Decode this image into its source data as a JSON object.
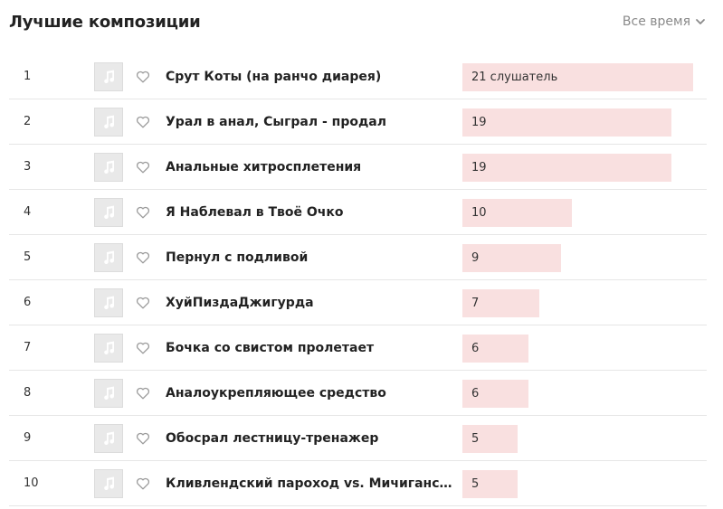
{
  "header": {
    "title": "Лучшие композиции",
    "period_label": "Все время"
  },
  "colors": {
    "bar_fill": "#f9e0e0",
    "divider": "#e6e6e6",
    "muted_text": "#8a8a8a"
  },
  "icons": {
    "cover": "music-note-icon",
    "like": "heart-outline-icon",
    "period": "chevron-down-icon"
  },
  "tracks": [
    {
      "rank": "1",
      "name": "Срут Коты (на ранчо диарея)",
      "listeners": 21,
      "listeners_label": "21 слушатель"
    },
    {
      "rank": "2",
      "name": "Урал в анал, Сыграл - продал",
      "listeners": 19,
      "listeners_label": "19"
    },
    {
      "rank": "3",
      "name": "Анальные хитросплетения",
      "listeners": 19,
      "listeners_label": "19"
    },
    {
      "rank": "4",
      "name": "Я Наблевал в Твоё Очко",
      "listeners": 10,
      "listeners_label": "10"
    },
    {
      "rank": "5",
      "name": "Пернул с подливой",
      "listeners": 9,
      "listeners_label": "9"
    },
    {
      "rank": "6",
      "name": "ХуйПиздаДжигурда",
      "listeners": 7,
      "listeners_label": "7"
    },
    {
      "rank": "7",
      "name": "Бочка со свистом пролетает",
      "listeners": 6,
      "listeners_label": "6"
    },
    {
      "rank": "8",
      "name": "Аналоукрепляющее средство",
      "listeners": 6,
      "listeners_label": "6"
    },
    {
      "rank": "9",
      "name": "Обосрал лестницу-тренажер",
      "listeners": 5,
      "listeners_label": "5"
    },
    {
      "rank": "10",
      "name": "Кливлендский пароход vs. Мичиганский пароход",
      "listeners": 5,
      "listeners_label": "5"
    }
  ]
}
